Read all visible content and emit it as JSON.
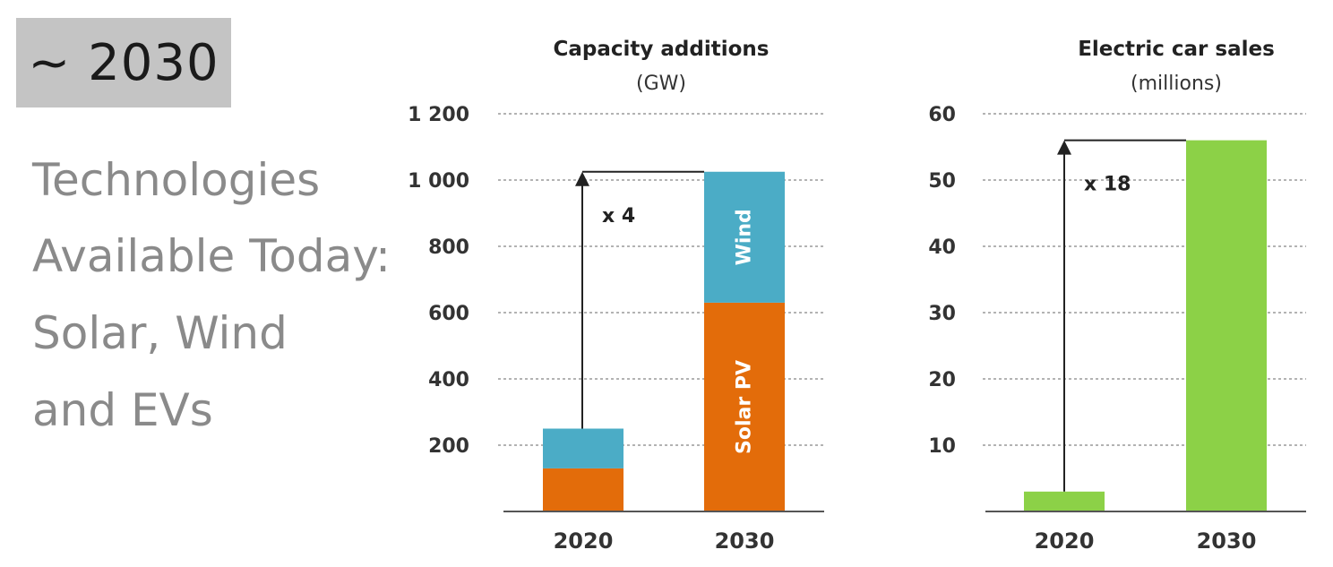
{
  "slide": {
    "year_tag": "~ 2030",
    "text_lines": [
      "Technologies",
      "Available Today:",
      "Solar, Wind",
      "and EVs"
    ]
  },
  "chart_data": [
    {
      "type": "bar",
      "stacked": true,
      "title": "Capacity additions",
      "subtitle": "(GW)",
      "categories": [
        "2020",
        "2030"
      ],
      "series": [
        {
          "name": "Solar PV",
          "color": "#e36c0a",
          "values": [
            130,
            630
          ]
        },
        {
          "name": "Wind",
          "color": "#4bacc6",
          "values": [
            120,
            395
          ]
        }
      ],
      "ylim": [
        0,
        1200
      ],
      "yticks": [
        200,
        400,
        600,
        800,
        1000,
        1200
      ],
      "ytick_labels": [
        "200",
        "400",
        "600",
        "800",
        "1 000",
        "1 200"
      ],
      "grid": true,
      "annotation": "x 4"
    },
    {
      "type": "bar",
      "title": "Electric car sales",
      "subtitle": "(millions)",
      "categories": [
        "2020",
        "2030"
      ],
      "values": [
        3,
        56
      ],
      "color": "#8cd147",
      "ylim": [
        0,
        60
      ],
      "yticks": [
        10,
        20,
        30,
        40,
        50,
        60
      ],
      "ytick_labels": [
        "10",
        "20",
        "30",
        "40",
        "50",
        "60"
      ],
      "grid": true,
      "annotation": "x 18"
    }
  ]
}
